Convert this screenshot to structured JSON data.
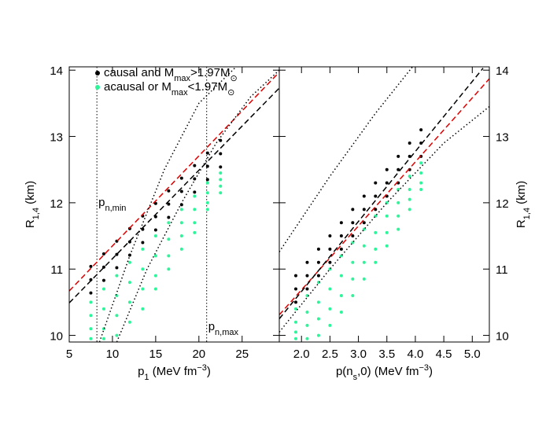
{
  "chart_data": [
    {
      "type": "scatter",
      "xlabel": [
        {
          "text": "p"
        },
        {
          "text": "1",
          "sub": true
        },
        {
          "text": " (MeV fm"
        },
        {
          "text": "−3",
          "sup": true
        },
        {
          "text": ")"
        }
      ],
      "ylabel": [
        {
          "text": "R"
        },
        {
          "text": "1,4",
          "sub": true
        },
        {
          "text": " (km)"
        }
      ],
      "ylabel_side": "left",
      "xlim": [
        5,
        29.3
      ],
      "ylim": [
        9.9,
        14.05
      ],
      "xticks": [
        5,
        10,
        15,
        20,
        25
      ],
      "yticks": [
        10,
        11,
        12,
        13,
        14
      ],
      "series": [
        {
          "name": [
            {
              "text": "causal and M"
            },
            {
              "text": "max",
              "sub": true
            },
            {
              "text": ">1.97M"
            },
            {
              "text": "⊙",
              "sub": true
            }
          ],
          "color": "#000000",
          "x": [
            7.5,
            7.5,
            7.5,
            9,
            9,
            9,
            10.5,
            10.5,
            10.5,
            12,
            12,
            12,
            13.5,
            13.5,
            13.5,
            15,
            15,
            15,
            16.5,
            16.5,
            16.5,
            18,
            18,
            18,
            19.5,
            19.5,
            19.5,
            21,
            21,
            21,
            22.5,
            22.5,
            22.5
          ],
          "values": [
            11.04,
            10.84,
            10.64,
            11.23,
            11.03,
            10.83,
            11.42,
            11.22,
            11.02,
            11.61,
            11.41,
            11.21,
            11.8,
            11.6,
            11.4,
            11.99,
            11.79,
            11.59,
            12.18,
            11.98,
            11.78,
            12.37,
            12.17,
            11.97,
            12.56,
            12.36,
            12.16,
            12.75,
            12.55,
            12.35,
            12.94,
            12.74,
            12.54
          ]
        },
        {
          "name": [
            {
              "text": "acausal or M"
            },
            {
              "text": "max",
              "sub": true
            },
            {
              "text": "<1.97M"
            },
            {
              "text": "⊙",
              "sub": true
            }
          ],
          "color": "#2cf59a",
          "x": [
            7.5,
            7.5,
            7.5,
            7.5,
            9,
            9,
            9,
            9,
            10.5,
            10.5,
            10.5,
            10.5,
            12,
            12,
            12,
            12,
            13.5,
            13.5,
            13.5,
            13.5,
            15,
            15,
            15,
            15,
            16.5,
            16.5,
            16.5,
            16.5,
            18,
            18,
            18,
            18,
            19.5,
            19.5,
            19.5,
            19.5,
            21,
            21,
            21,
            21,
            22.5,
            22.5,
            22.5,
            22.5
          ],
          "values": [
            10.5,
            10.3,
            10.1,
            9.95,
            10.7,
            10.4,
            10.1,
            9.95,
            10.9,
            10.6,
            10.3,
            10.0,
            11.1,
            10.8,
            10.5,
            10.2,
            11.3,
            11.0,
            10.7,
            10.4,
            11.5,
            11.2,
            10.9,
            10.7,
            11.7,
            11.45,
            11.2,
            11.0,
            11.9,
            11.7,
            11.5,
            11.3,
            12.1,
            11.9,
            11.7,
            11.55,
            12.3,
            12.15,
            12.0,
            11.9,
            12.45,
            12.35,
            12.25,
            12.15
          ]
        }
      ],
      "lines": [
        {
          "color": "#e00000",
          "dash": "dashed",
          "x": [
            5,
            29.3
          ],
          "values": [
            10.67,
            13.97
          ]
        },
        {
          "color": "#000000",
          "dash": "dashed",
          "x": [
            5,
            29.3
          ],
          "values": [
            10.49,
            13.73
          ]
        },
        {
          "color": "#000000",
          "dash": "dotted",
          "x": [
            8.5,
            12,
            16,
            20,
            24.3
          ],
          "values": [
            9.9,
            11.2,
            12.5,
            13.5,
            14.05
          ]
        },
        {
          "color": "#000000",
          "dash": "dotted",
          "x": [
            10.5,
            14,
            18,
            22,
            26,
            29.3
          ],
          "values": [
            9.9,
            11.0,
            12.0,
            12.9,
            13.6,
            14.0
          ]
        }
      ],
      "vlines": [
        {
          "x": 8.2,
          "label": [
            {
              "text": "p"
            },
            {
              "text": "n,min",
              "sub": true
            }
          ]
        },
        {
          "x": 20.9,
          "label": [
            {
              "text": "p"
            },
            {
              "text": "n,max",
              "sub": true
            }
          ]
        }
      ]
    },
    {
      "type": "scatter",
      "xlabel": [
        {
          "text": "p(n"
        },
        {
          "text": "s",
          "sub": true
        },
        {
          "text": ",0) (MeV fm"
        },
        {
          "text": "−3",
          "sup": true
        },
        {
          "text": ")"
        }
      ],
      "ylabel": [
        {
          "text": "R"
        },
        {
          "text": "1,4",
          "sub": true
        },
        {
          "text": " (km)"
        }
      ],
      "ylabel_side": "right",
      "xlim": [
        1.61,
        5.3
      ],
      "ylim": [
        9.9,
        14.05
      ],
      "xticks": [
        {
          "value": 2,
          "label": "2.0"
        },
        2.5,
        {
          "value": 3,
          "label": "3.0"
        },
        3.5,
        {
          "value": 4,
          "label": "4.0"
        },
        4.5,
        {
          "value": 5,
          "label": "5.0"
        }
      ],
      "yticks": [
        10,
        11,
        12,
        13,
        14
      ],
      "series": [
        {
          "color": "#000000",
          "x": [
            1.9,
            1.9,
            1.9,
            2.1,
            2.1,
            2.1,
            2.3,
            2.3,
            2.3,
            2.5,
            2.5,
            2.5,
            2.7,
            2.7,
            2.7,
            2.9,
            2.9,
            2.9,
            3.1,
            3.1,
            3.1,
            3.3,
            3.3,
            3.3,
            3.5,
            3.5,
            3.5,
            3.7,
            3.7,
            3.7,
            3.9,
            3.9,
            3.9,
            4.1,
            4.1,
            4.1
          ],
          "values": [
            10.9,
            10.7,
            10.5,
            11.1,
            10.9,
            10.7,
            11.3,
            11.1,
            10.9,
            11.5,
            11.3,
            11.1,
            11.7,
            11.5,
            11.3,
            11.9,
            11.7,
            11.5,
            12.1,
            11.9,
            11.7,
            12.3,
            12.1,
            11.9,
            12.5,
            12.3,
            12.1,
            12.7,
            12.5,
            12.3,
            12.9,
            12.7,
            12.5,
            13.1,
            12.9,
            12.7
          ]
        },
        {
          "color": "#2cf59a",
          "x": [
            1.9,
            1.9,
            1.9,
            1.9,
            2.1,
            2.1,
            2.1,
            2.1,
            2.3,
            2.3,
            2.3,
            2.3,
            2.5,
            2.5,
            2.5,
            2.5,
            2.7,
            2.7,
            2.7,
            2.7,
            2.9,
            2.9,
            2.9,
            2.9,
            3.1,
            3.1,
            3.1,
            3.1,
            3.3,
            3.3,
            3.3,
            3.3,
            3.5,
            3.5,
            3.5,
            3.5,
            3.7,
            3.7,
            3.7,
            3.7,
            3.9,
            3.9,
            3.9,
            3.9,
            4.1,
            4.1,
            4.1,
            4.1
          ],
          "values": [
            10.4,
            10.2,
            10.05,
            9.95,
            10.6,
            10.35,
            10.15,
            9.95,
            10.8,
            10.5,
            10.25,
            10.0,
            11.0,
            10.7,
            10.4,
            10.15,
            11.2,
            10.9,
            10.6,
            10.35,
            11.4,
            11.1,
            10.85,
            10.6,
            11.6,
            11.35,
            11.1,
            10.85,
            11.8,
            11.55,
            11.3,
            11.1,
            12.0,
            11.8,
            11.55,
            11.35,
            12.2,
            12.0,
            11.8,
            11.6,
            12.4,
            12.2,
            12.05,
            11.9,
            12.6,
            12.45,
            12.3,
            12.2
          ]
        }
      ],
      "lines": [
        {
          "color": "#e00000",
          "dash": "dashed",
          "x": [
            1.61,
            5.3
          ],
          "values": [
            10.31,
            13.87
          ]
        },
        {
          "color": "#000000",
          "dash": "dashed",
          "x": [
            1.61,
            5.19
          ],
          "values": [
            10.25,
            14.03
          ]
        },
        {
          "color": "#000000",
          "dash": "dotted",
          "x": [
            1.61,
            2.5,
            3.3,
            3.95
          ],
          "values": [
            11.26,
            12.4,
            13.35,
            14.05
          ]
        },
        {
          "color": "#000000",
          "dash": "dotted",
          "x": [
            1.61,
            2.5,
            3.5,
            4.5,
            5.3
          ],
          "values": [
            10.05,
            11.0,
            12.0,
            12.9,
            13.45
          ]
        }
      ]
    }
  ]
}
